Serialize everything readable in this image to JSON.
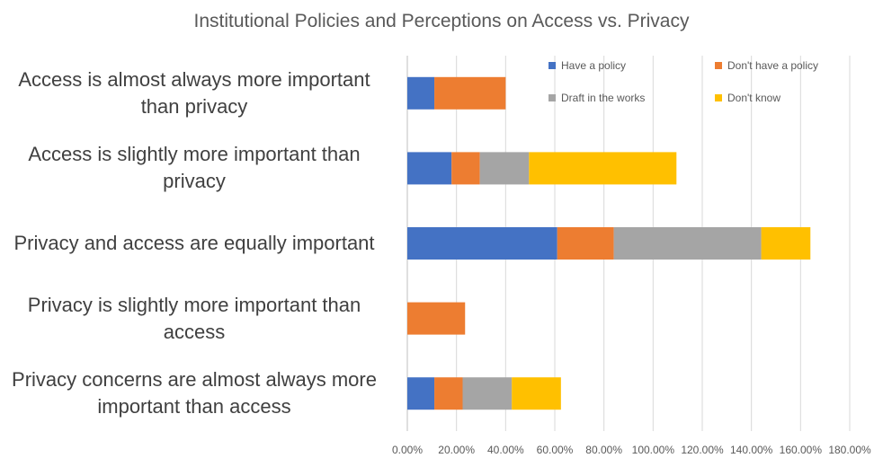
{
  "chart_data": {
    "type": "bar",
    "orientation": "horizontal",
    "stacked": true,
    "title": "Institutional Policies and Perceptions on Access vs. Privacy",
    "xlabel": "",
    "ylabel": "",
    "xlim": [
      0,
      180
    ],
    "xticks": [
      "0.00%",
      "20.00%",
      "40.00%",
      "60.00%",
      "80.00%",
      "100.00%",
      "120.00%",
      "140.00%",
      "160.00%",
      "180.00%"
    ],
    "categories": [
      "Access is almost always more important than privacy",
      "Access is slightly more important than privacy",
      "Privacy and access are equally important",
      "Privacy is slightly more important than access",
      "Privacy concerns are almost always more important than access"
    ],
    "series": [
      {
        "name": "Have a policy",
        "color": "#4472C4",
        "values": [
          11,
          18,
          61,
          0,
          11
        ]
      },
      {
        "name": "Don't have a policy",
        "color": "#ED7D31",
        "values": [
          29,
          11.5,
          23,
          23.5,
          11.5
        ]
      },
      {
        "name": "Draft in the works",
        "color": "#A5A5A5",
        "values": [
          0,
          20,
          60,
          0,
          20
        ]
      },
      {
        "name": "Don't know",
        "color": "#FFC000",
        "values": [
          0,
          60,
          20,
          0,
          20
        ]
      }
    ],
    "grid": true,
    "legend_position": "top-right"
  }
}
